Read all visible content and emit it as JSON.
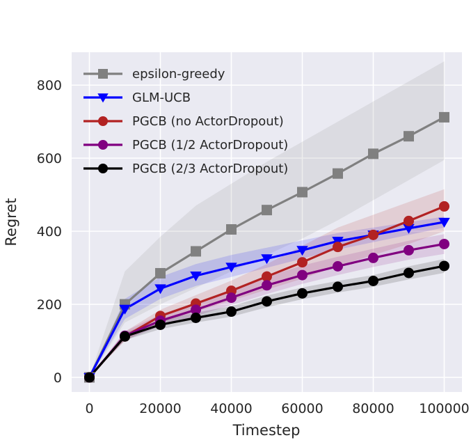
{
  "chart_data": {
    "type": "line",
    "title": "",
    "xlabel": "Timestep",
    "ylabel": "Regret",
    "xlim": [
      -5000,
      105000
    ],
    "ylim": [
      -40,
      890
    ],
    "xticks": [
      0,
      20000,
      40000,
      60000,
      80000,
      100000
    ],
    "xtick_labels": [
      "0",
      "20000",
      "40000",
      "60000",
      "80000",
      "100000"
    ],
    "yticks": [
      0,
      200,
      400,
      600,
      800
    ],
    "ytick_labels": [
      "0",
      "200",
      "400",
      "600",
      "800"
    ],
    "grid": true,
    "legend_position": "top-left",
    "x": [
      0,
      10000,
      20000,
      30000,
      40000,
      50000,
      60000,
      70000,
      80000,
      90000,
      100000
    ],
    "series": [
      {
        "name": "epsilon-greedy",
        "color": "#808080",
        "marker": "square",
        "values": [
          0,
          200,
          285,
          345,
          405,
          458,
          507,
          558,
          612,
          660,
          712
        ],
        "band_lower": [
          0,
          150,
          200,
          245,
          290,
          335,
          380,
          430,
          485,
          540,
          595
        ],
        "band_upper": [
          0,
          290,
          385,
          470,
          530,
          590,
          645,
          700,
          755,
          810,
          865
        ]
      },
      {
        "name": "GLM-UCB",
        "color": "#0000ff",
        "marker": "triangle-down",
        "values": [
          0,
          187,
          243,
          278,
          302,
          325,
          348,
          373,
          390,
          408,
          425
        ],
        "band_lower": [
          0,
          160,
          215,
          250,
          275,
          300,
          325,
          350,
          370,
          390,
          410
        ],
        "band_upper": [
          0,
          215,
          275,
          310,
          335,
          355,
          375,
          395,
          410,
          425,
          440
        ]
      },
      {
        "name": "PGCB (no ActorDropout)",
        "color": "#b22222",
        "marker": "circle",
        "values": [
          0,
          112,
          168,
          202,
          237,
          276,
          315,
          357,
          390,
          428,
          468
        ],
        "band_lower": [
          0,
          100,
          150,
          180,
          210,
          240,
          270,
          305,
          335,
          365,
          400
        ],
        "band_upper": [
          0,
          125,
          185,
          225,
          265,
          310,
          360,
          410,
          445,
          480,
          515
        ]
      },
      {
        "name": "PGCB (1/2 ActorDropout)",
        "color": "#800080",
        "marker": "circle",
        "values": [
          0,
          114,
          155,
          185,
          218,
          252,
          280,
          304,
          327,
          348,
          365
        ],
        "band_lower": [
          0,
          102,
          140,
          168,
          198,
          228,
          256,
          280,
          302,
          322,
          338
        ],
        "band_upper": [
          0,
          126,
          172,
          205,
          240,
          276,
          306,
          330,
          352,
          374,
          392
        ]
      },
      {
        "name": "PGCB (2/3 ActorDropout)",
        "color": "#000000",
        "marker": "circle",
        "values": [
          0,
          112,
          144,
          163,
          180,
          208,
          230,
          248,
          264,
          286,
          305
        ],
        "band_lower": [
          0,
          102,
          132,
          150,
          166,
          192,
          214,
          232,
          248,
          268,
          286
        ],
        "band_upper": [
          0,
          122,
          157,
          177,
          195,
          224,
          246,
          264,
          280,
          304,
          324
        ]
      }
    ]
  }
}
